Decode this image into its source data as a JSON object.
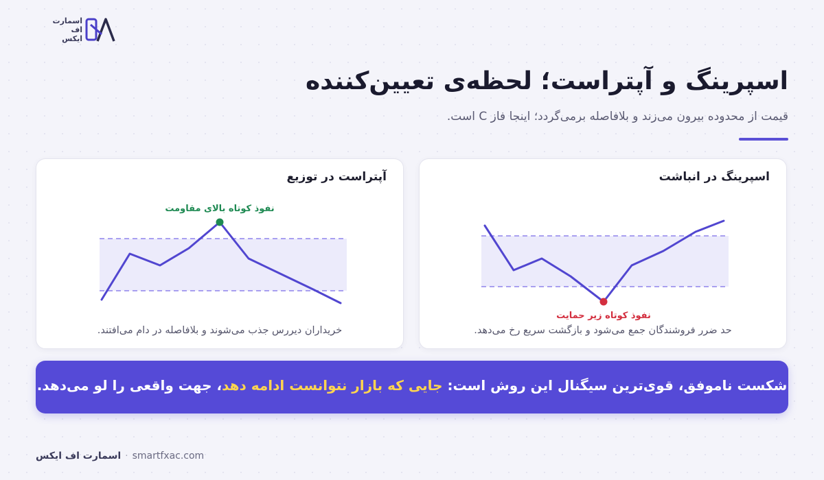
{
  "logo": {
    "text_line1": "اسمارت",
    "text_line2": "اف",
    "text_line3": "ایکس",
    "icon": "smartfx-logo-icon"
  },
  "header": {
    "title": "اسپرینگ و آپتراست؛ لحظه‌ی تعیین‌کننده",
    "subtitle": "قیمت از محدوده بیرون می‌زند و بلافاصله برمی‌گردد؛ اینجا فاز C است."
  },
  "colors": {
    "accent": "#554ad7",
    "line": "#5146d0",
    "zone": "#ecebfb",
    "zone_border": "#a89ff0",
    "green": "#1f8a53",
    "red": "#d32f3f",
    "highlight": "#ffd54f"
  },
  "cards": {
    "upthrust": {
      "title": "آپتراست در توزیع",
      "label": "نفوذ کوتاه بالای مقاومت",
      "caption": "خریداران دیررس جذب می‌شوند و بلافاصله در دام می‌افتند."
    },
    "spring": {
      "title": "اسپرینگ در انباشت",
      "label": "نفوذ کوتاه زیر حمایت",
      "caption": "حد ضرر فروشندگان جمع می‌شود و بازگشت سریع رخ می‌دهد."
    }
  },
  "banner": {
    "part1": "شکست ناموفق، قوی‌ترین سیگنال این روش است: ",
    "highlight": "جایی که بازار نتوانست ادامه دهد",
    "part2": "، جهت واقعی را لو می‌دهد."
  },
  "footer": {
    "brand": "اسمارت اف ایکس",
    "separator": "·",
    "site": "smartfxac.com"
  }
}
